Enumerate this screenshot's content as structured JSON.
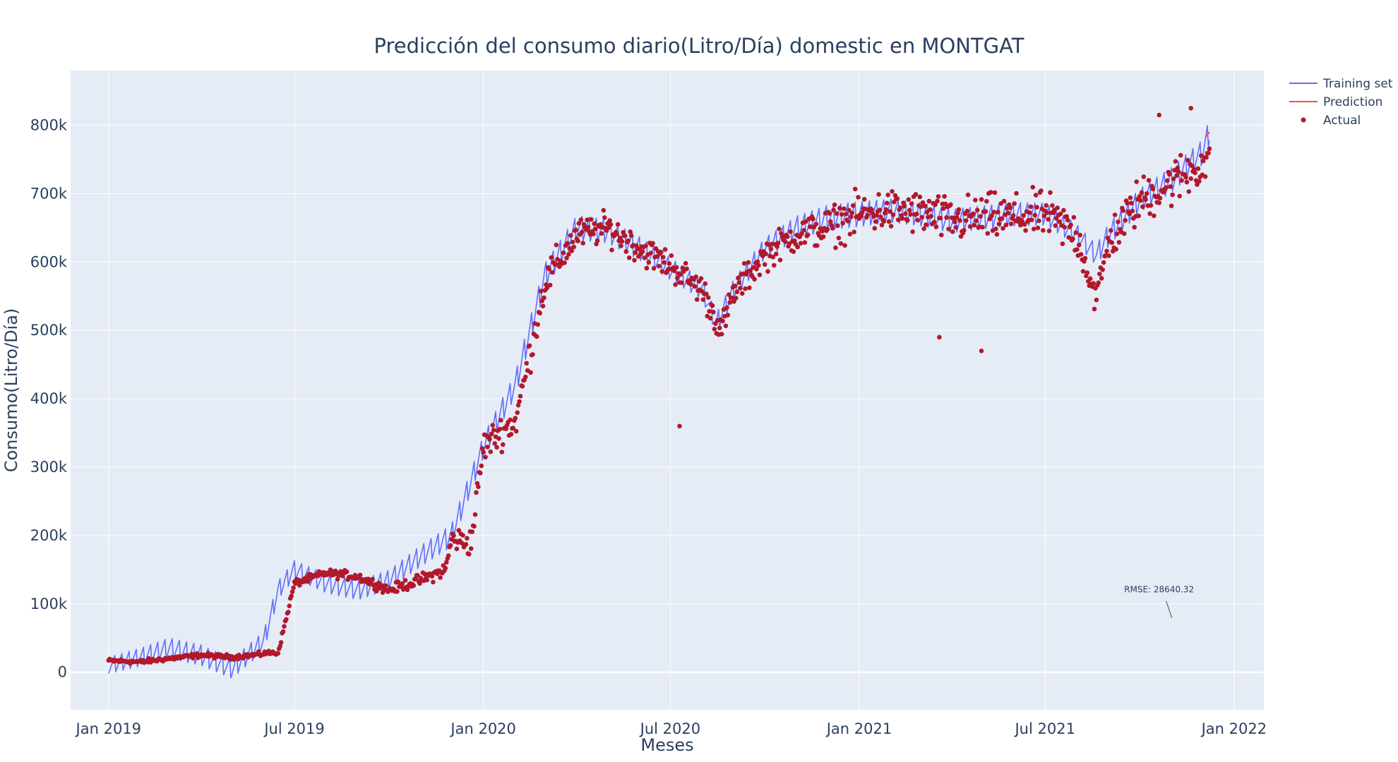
{
  "chart_data": {
    "type": "line",
    "title": "Predicción del consumo diario(Litro/Día) domestic en MONTGAT",
    "xlabel": "Meses",
    "ylabel": "Consumo(Litro/Día)",
    "xlim": [
      "2018-11-25",
      "2022-01-30"
    ],
    "ylim": [
      -55000,
      880000
    ],
    "x_ticks": [
      {
        "date": "2019-01-01",
        "label": "Jan 2019"
      },
      {
        "date": "2019-07-01",
        "label": "Jul 2019"
      },
      {
        "date": "2020-01-01",
        "label": "Jan 2020"
      },
      {
        "date": "2020-07-01",
        "label": "Jul 2020"
      },
      {
        "date": "2021-01-01",
        "label": "Jan 2021"
      },
      {
        "date": "2021-07-01",
        "label": "Jul 2021"
      },
      {
        "date": "2022-01-01",
        "label": "Jan 2022"
      }
    ],
    "y_ticks": [
      {
        "value": 0,
        "label": "0"
      },
      {
        "value": 100000,
        "label": "100k"
      },
      {
        "value": 200000,
        "label": "200k"
      },
      {
        "value": 300000,
        "label": "300k"
      },
      {
        "value": 400000,
        "label": "400k"
      },
      {
        "value": 500000,
        "label": "500k"
      },
      {
        "value": 600000,
        "label": "600k"
      },
      {
        "value": 700000,
        "label": "700k"
      },
      {
        "value": 800000,
        "label": "800k"
      }
    ],
    "grid": true,
    "legend_position": "top-right",
    "series": [
      {
        "name": "Training set",
        "kind": "line",
        "color": "#636efa",
        "x": [
          "2019-01-01",
          "2019-02-01",
          "2019-03-01",
          "2019-04-01",
          "2019-05-01",
          "2019-06-01",
          "2019-06-15",
          "2019-07-01",
          "2019-08-01",
          "2019-09-01",
          "2019-10-01",
          "2019-11-01",
          "2019-12-01",
          "2020-01-01",
          "2020-02-01",
          "2020-03-01",
          "2020-04-01",
          "2020-05-01",
          "2020-06-01",
          "2020-07-01",
          "2020-08-01",
          "2020-08-15",
          "2020-09-01",
          "2020-10-01",
          "2020-11-01",
          "2020-12-01",
          "2021-01-01",
          "2021-02-01",
          "2021-03-01",
          "2021-04-01",
          "2021-05-01",
          "2021-06-01",
          "2021-07-01",
          "2021-08-01",
          "2021-08-20",
          "2021-09-01",
          "2021-10-01",
          "2021-11-01",
          "2021-12-01",
          "2021-12-08"
        ],
        "y": [
          10000,
          22000,
          35000,
          25000,
          5000,
          45000,
          120000,
          150000,
          130000,
          120000,
          135000,
          170000,
          200000,
          330000,
          420000,
          580000,
          650000,
          645000,
          620000,
          590000,
          560000,
          510000,
          560000,
          620000,
          650000,
          665000,
          670000,
          675000,
          670000,
          660000,
          665000,
          670000,
          670000,
          640000,
          610000,
          640000,
          690000,
          720000,
          760000,
          790000
        ],
        "amplitude": [
          12000,
          13000,
          15000,
          15000,
          14000,
          14000,
          13000,
          13000,
          14000,
          14000,
          14000,
          15000,
          16000,
          16000,
          17000,
          18000,
          18000,
          17000,
          17000,
          16000,
          15000,
          15000,
          15000,
          15000,
          17000,
          18000,
          18000,
          17000,
          17000,
          17000,
          17000,
          17000,
          16000,
          15000,
          15000,
          16000,
          17000,
          18000,
          18000,
          18000
        ]
      },
      {
        "name": "Prediction",
        "kind": "line",
        "color": "#ef553b",
        "x": [
          "2021-12-04",
          "2021-12-08"
        ],
        "y": [
          782000,
          790000
        ]
      },
      {
        "name": "Actual",
        "kind": "scatter",
        "color": "#b2182b",
        "x": [
          "2019-01-01",
          "2019-02-01",
          "2019-03-01",
          "2019-04-01",
          "2019-05-01",
          "2019-05-29",
          "2019-06-02",
          "2019-06-15",
          "2019-07-01",
          "2019-08-01",
          "2019-09-01",
          "2019-10-01",
          "2019-11-01",
          "2019-11-25",
          "2019-12-01",
          "2019-12-20",
          "2020-01-01",
          "2020-01-25",
          "2020-02-01",
          "2020-03-01",
          "2020-04-01",
          "2020-05-01",
          "2020-06-01",
          "2020-07-01",
          "2020-08-01",
          "2020-08-20",
          "2020-09-01",
          "2020-10-01",
          "2020-11-01",
          "2020-12-01",
          "2021-01-01",
          "2021-02-01",
          "2021-03-01",
          "2021-04-01",
          "2021-05-01",
          "2021-06-01",
          "2021-07-01",
          "2021-08-01",
          "2021-08-20",
          "2021-09-01",
          "2021-10-01",
          "2021-11-01",
          "2021-12-01",
          "2021-12-08"
        ],
        "y": [
          17000,
          15000,
          20000,
          25000,
          22000,
          26000,
          28000,
          28000,
          130000,
          145000,
          140000,
          120000,
          135000,
          150000,
          195000,
          190000,
          330000,
          360000,
          365000,
          570000,
          640000,
          650000,
          620000,
          595000,
          560000,
          500000,
          555000,
          610000,
          640000,
          650000,
          670000,
          675000,
          672000,
          660000,
          665000,
          665000,
          670000,
          640000,
          545000,
          630000,
          690000,
          715000,
          745000,
          750000
        ],
        "spread": [
          2500,
          3000,
          3000,
          3000,
          3000,
          3000,
          3000,
          3000,
          5000,
          5000,
          6000,
          6000,
          8000,
          9000,
          15000,
          18000,
          20000,
          22000,
          24000,
          25000,
          20000,
          20000,
          20000,
          20000,
          20000,
          20000,
          20000,
          20000,
          22000,
          25000,
          28000,
          28000,
          28000,
          30000,
          30000,
          30000,
          30000,
          30000,
          25000,
          28000,
          30000,
          32000,
          32000,
          30000
        ],
        "outliers": [
          {
            "x": "2020-07-10",
            "y": 360000
          },
          {
            "x": "2021-03-20",
            "y": 490000
          },
          {
            "x": "2021-04-30",
            "y": 470000
          },
          {
            "x": "2021-11-20",
            "y": 825000
          },
          {
            "x": "2021-10-20",
            "y": 815000
          }
        ]
      }
    ],
    "annotation": {
      "text": "RMSE: 28640.32",
      "x": "2021-10-20",
      "y": 65000
    }
  }
}
